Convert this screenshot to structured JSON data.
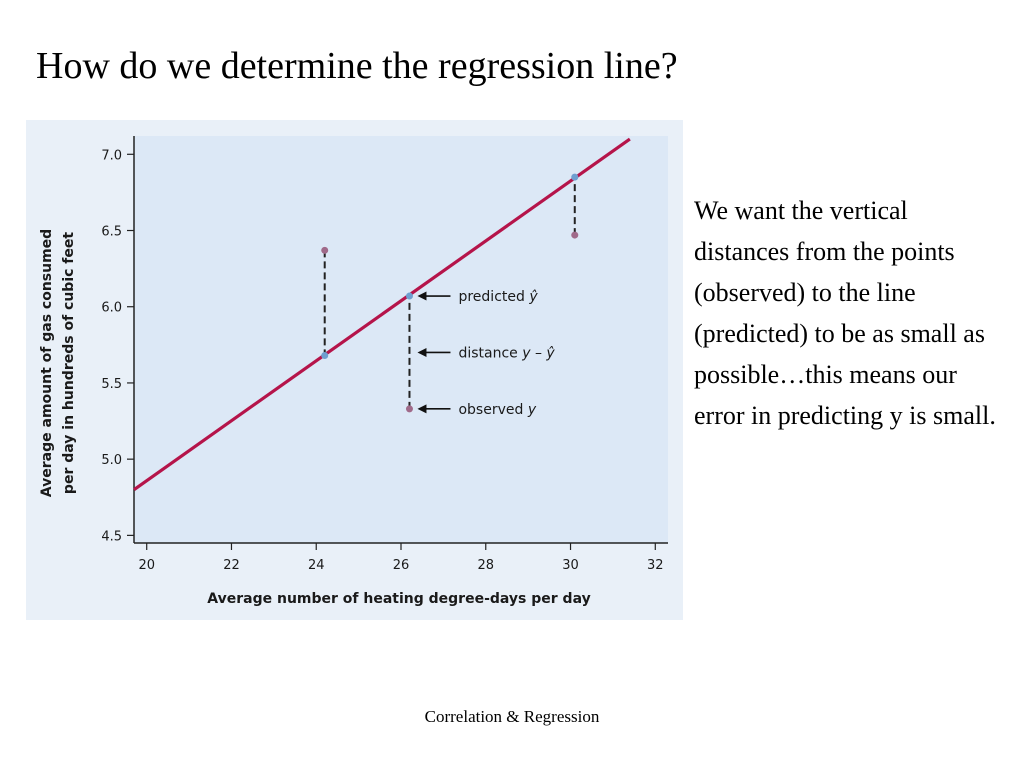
{
  "slide": {
    "title": "How do we determine the regression line?",
    "body_text": "We want the vertical distances from the points (observed) to the line (predicted) to be as small as possible…this means our error in predicting y is small.",
    "footer": "Correlation & Regression"
  },
  "chart_data": {
    "type": "scatter",
    "xlabel": "Average number of heating degree-days per day",
    "ylabel_lines": [
      "Average amount of gas consumed",
      "per day in hundreds of cubic feet"
    ],
    "xlim": [
      19.7,
      32.3
    ],
    "ylim": [
      4.45,
      7.12
    ],
    "xticks": [
      20,
      22,
      24,
      26,
      28,
      30,
      32
    ],
    "yticks": [
      4.5,
      5.0,
      5.5,
      6.0,
      6.5,
      7.0
    ],
    "ytick_labels": [
      "4.5",
      "5.0",
      "5.5",
      "6.0",
      "6.5",
      "7.0"
    ],
    "grid": false,
    "regression_line": {
      "x": [
        19.7,
        31.4
      ],
      "y": [
        4.8,
        7.1
      ],
      "color": "#b5144a"
    },
    "points": [
      {
        "x": 24.2,
        "observed": 6.37,
        "predicted": 5.68
      },
      {
        "x": 26.2,
        "observed": 5.33,
        "predicted": 6.07
      },
      {
        "x": 30.1,
        "observed": 6.47,
        "predicted": 6.85
      }
    ],
    "annotations": [
      {
        "text": "predicted ",
        "symbol": "ŷ",
        "target": "predicted"
      },
      {
        "text": "distance ",
        "symbol": "y – ŷ",
        "target": "distance"
      },
      {
        "text": "observed ",
        "symbol": "y",
        "target": "observed"
      }
    ],
    "colors": {
      "plot_background": "#dce8f6",
      "figure_background": "#e9f0f8",
      "observed_point": "#a06a8a",
      "predicted_point": "#6f9fd0",
      "line": "#b5144a"
    }
  }
}
